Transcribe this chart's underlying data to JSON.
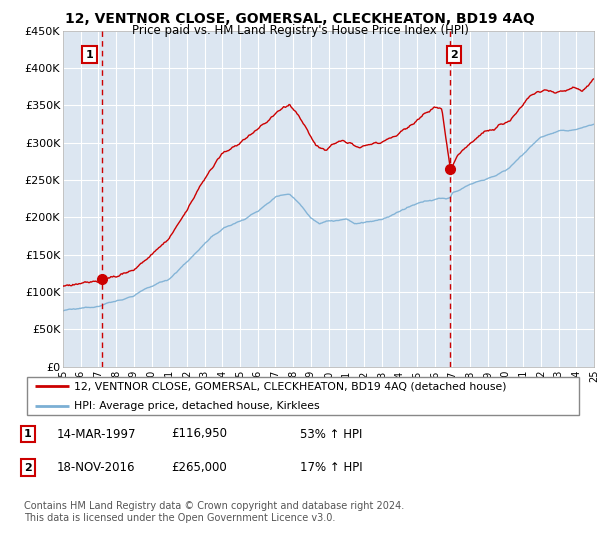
{
  "title": "12, VENTNOR CLOSE, GOMERSAL, CLECKHEATON, BD19 4AQ",
  "subtitle": "Price paid vs. HM Land Registry's House Price Index (HPI)",
  "ylim": [
    0,
    450000
  ],
  "yticks": [
    0,
    50000,
    100000,
    150000,
    200000,
    250000,
    300000,
    350000,
    400000,
    450000
  ],
  "ytick_labels": [
    "£0",
    "£50K",
    "£100K",
    "£150K",
    "£200K",
    "£250K",
    "£300K",
    "£350K",
    "£400K",
    "£450K"
  ],
  "plot_bg_color": "#dce6f1",
  "grid_color": "#ffffff",
  "sale1_date": 1997.2,
  "sale1_price": 116950,
  "sale1_label": "1",
  "sale2_date": 2016.88,
  "sale2_price": 265000,
  "sale2_label": "2",
  "hpi_line_color": "#7bafd4",
  "price_line_color": "#cc0000",
  "legend_entry1": "12, VENTNOR CLOSE, GOMERSAL, CLECKHEATON, BD19 4AQ (detached house)",
  "legend_entry2": "HPI: Average price, detached house, Kirklees",
  "table_row1_num": "1",
  "table_row1_date": "14-MAR-1997",
  "table_row1_price": "£116,950",
  "table_row1_hpi": "53% ↑ HPI",
  "table_row2_num": "2",
  "table_row2_date": "18-NOV-2016",
  "table_row2_price": "£265,000",
  "table_row2_hpi": "17% ↑ HPI",
  "footnote": "Contains HM Land Registry data © Crown copyright and database right 2024.\nThis data is licensed under the Open Government Licence v3.0.",
  "xmin": 1995,
  "xmax": 2025
}
